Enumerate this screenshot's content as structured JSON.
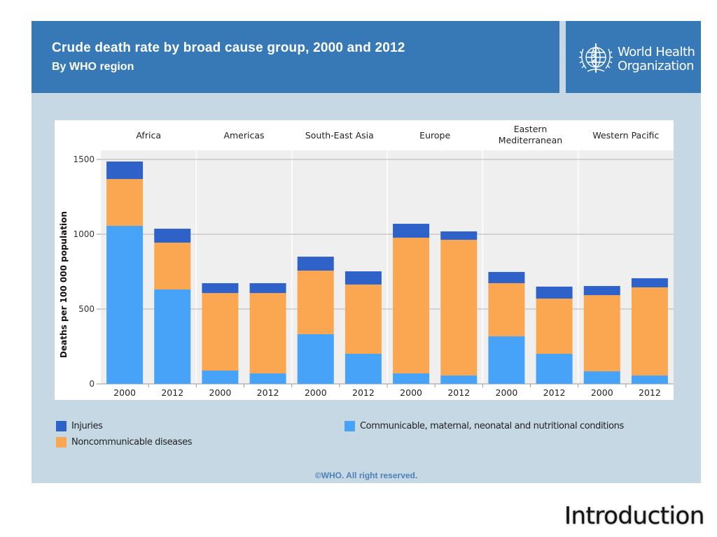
{
  "header": {
    "title": "Crude death rate by broad cause group, 2000 and 2012",
    "subtitle": "By WHO region"
  },
  "logo": {
    "icon": "who-emblem-icon",
    "line1": "World Health",
    "line2": "Organization"
  },
  "colors": {
    "header_bg": "#3679b6",
    "slide_bg": "#c6d8e4",
    "injuries": "#2e62c9",
    "noncommunicable": "#fba650",
    "communicable": "#47a3f7"
  },
  "chart_data": {
    "type": "bar",
    "stacked": true,
    "title": "Crude death rate by broad cause group, 2000 and 2012",
    "subtitle": "By WHO region",
    "xlabel": "",
    "ylabel": "Deaths per 100 000 population",
    "ylim": [
      0,
      1500
    ],
    "yticks": [
      0,
      500,
      1000,
      1500
    ],
    "grid": true,
    "legend_position": "bottom",
    "groups": [
      "Africa",
      "Americas",
      "South-East Asia",
      "Europe",
      "Eastern Mediterranean",
      "Western Pacific"
    ],
    "group_label_lines": [
      [
        "Africa"
      ],
      [
        "Americas"
      ],
      [
        "South-East Asia"
      ],
      [
        "Europe"
      ],
      [
        "Eastern",
        "Mediterranean"
      ],
      [
        "Western Pacific"
      ]
    ],
    "categories": [
      "2000",
      "2012",
      "2000",
      "2012",
      "2000",
      "2012",
      "2000",
      "2012",
      "2000",
      "2012",
      "2000",
      "2012"
    ],
    "series": [
      {
        "name": "Communicable, maternal, neonatal and nutritional conditions",
        "color": "#47a3f7",
        "values": [
          1056,
          631,
          89,
          70,
          332,
          201,
          70,
          56,
          318,
          201,
          84,
          56
        ]
      },
      {
        "name": "Noncommunicable diseases",
        "color": "#fba650",
        "values": [
          313,
          313,
          518,
          537,
          425,
          463,
          907,
          907,
          355,
          369,
          509,
          589
        ]
      },
      {
        "name": "Injuries",
        "color": "#2e62c9",
        "values": [
          117,
          93,
          66,
          66,
          93,
          88,
          93,
          56,
          75,
          80,
          61,
          61
        ]
      }
    ]
  },
  "legend": [
    {
      "label": "Injuries",
      "color": "#2e62c9"
    },
    {
      "label": "Noncommunicable diseases",
      "color": "#fba650"
    },
    {
      "label": "Communicable, maternal, neonatal and nutritional conditions",
      "color": "#47a3f7"
    }
  ],
  "copyright": "©WHO. All right reserved.",
  "slide_footer": "Introduction"
}
